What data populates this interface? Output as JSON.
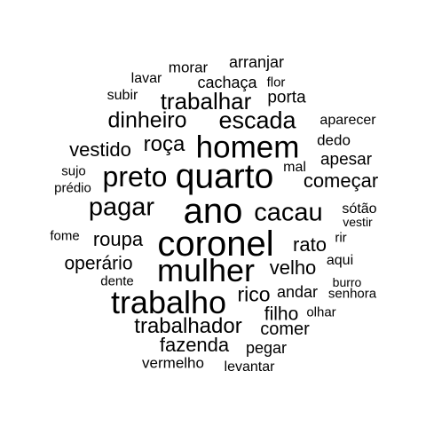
{
  "word_cloud": {
    "text_color": "#000000",
    "background": "#ffffff",
    "words": [
      {
        "text": "ano"
      },
      {
        "text": "coronel"
      },
      {
        "text": "mulher"
      },
      {
        "text": "quarto"
      },
      {
        "text": "trabalho"
      },
      {
        "text": "homem"
      },
      {
        "text": "preto"
      },
      {
        "text": "pagar"
      },
      {
        "text": "cacau"
      },
      {
        "text": "escada"
      },
      {
        "text": "trabalhar"
      },
      {
        "text": "dinheiro"
      },
      {
        "text": "trabalhador"
      },
      {
        "text": "roça"
      },
      {
        "text": "vestido"
      },
      {
        "text": "roupa"
      },
      {
        "text": "operário"
      },
      {
        "text": "rico"
      },
      {
        "text": "velho"
      },
      {
        "text": "começar"
      },
      {
        "text": "fazenda"
      },
      {
        "text": "rato"
      },
      {
        "text": "filho"
      },
      {
        "text": "apesar"
      },
      {
        "text": "comer"
      },
      {
        "text": "pegar"
      },
      {
        "text": "andar"
      },
      {
        "text": "porta"
      },
      {
        "text": "arranjar"
      },
      {
        "text": "cachaça"
      },
      {
        "text": "morar"
      },
      {
        "text": "dedo"
      },
      {
        "text": "aparecer"
      },
      {
        "text": "vermelho"
      },
      {
        "text": "levantar"
      },
      {
        "text": "sótão"
      },
      {
        "text": "aqui"
      },
      {
        "text": "mal"
      },
      {
        "text": "lavar"
      },
      {
        "text": "subir"
      },
      {
        "text": "flor"
      },
      {
        "text": "prédio"
      },
      {
        "text": "sujo"
      },
      {
        "text": "fome"
      },
      {
        "text": "dente"
      },
      {
        "text": "senhora"
      },
      {
        "text": "olhar"
      },
      {
        "text": "burro"
      },
      {
        "text": "rir"
      },
      {
        "text": "vestir"
      }
    ]
  }
}
